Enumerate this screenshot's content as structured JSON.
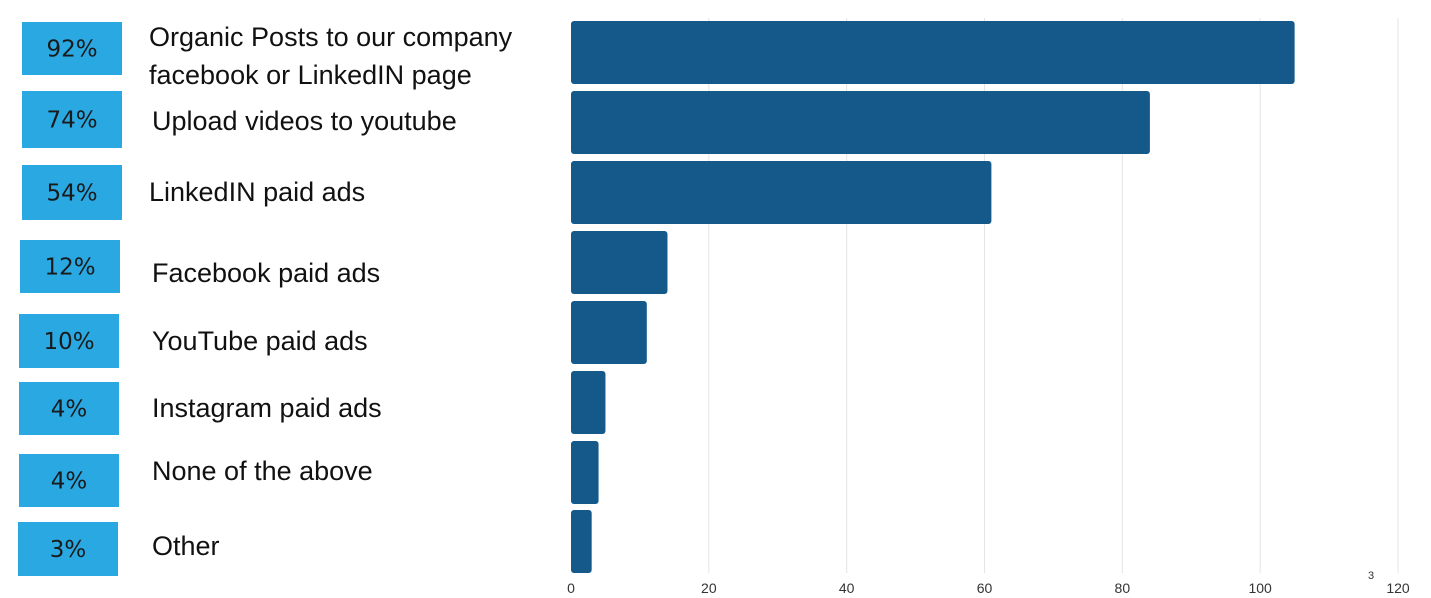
{
  "colors": {
    "bar": "#14598a",
    "badge": "#29a8e2",
    "grid": "#e4e4e4"
  },
  "chart_data": {
    "type": "bar",
    "orientation": "horizontal",
    "categories": [
      [
        "Organic Posts to our company",
        "facebook or LinkedIN page"
      ],
      [
        "Upload videos to youtube"
      ],
      [
        "LinkedIN paid ads"
      ],
      [
        "Facebook paid ads"
      ],
      [
        "YouTube paid ads"
      ],
      [
        "Instagram paid ads"
      ],
      [
        "None of the above"
      ],
      [
        "Other"
      ]
    ],
    "percent_labels": [
      "92%",
      "74%",
      "54%",
      "12%",
      "10%",
      "4%",
      "4%",
      "3%"
    ],
    "values": [
      105,
      84,
      61,
      14,
      11,
      5,
      4,
      3
    ],
    "xlim": [
      0,
      120
    ],
    "xticks": [
      "0",
      "20",
      "40",
      "60",
      "80",
      "100",
      "120"
    ],
    "xtick_values": [
      0,
      20,
      40,
      60,
      80,
      100,
      120
    ],
    "grid": true,
    "annotation": "3"
  }
}
